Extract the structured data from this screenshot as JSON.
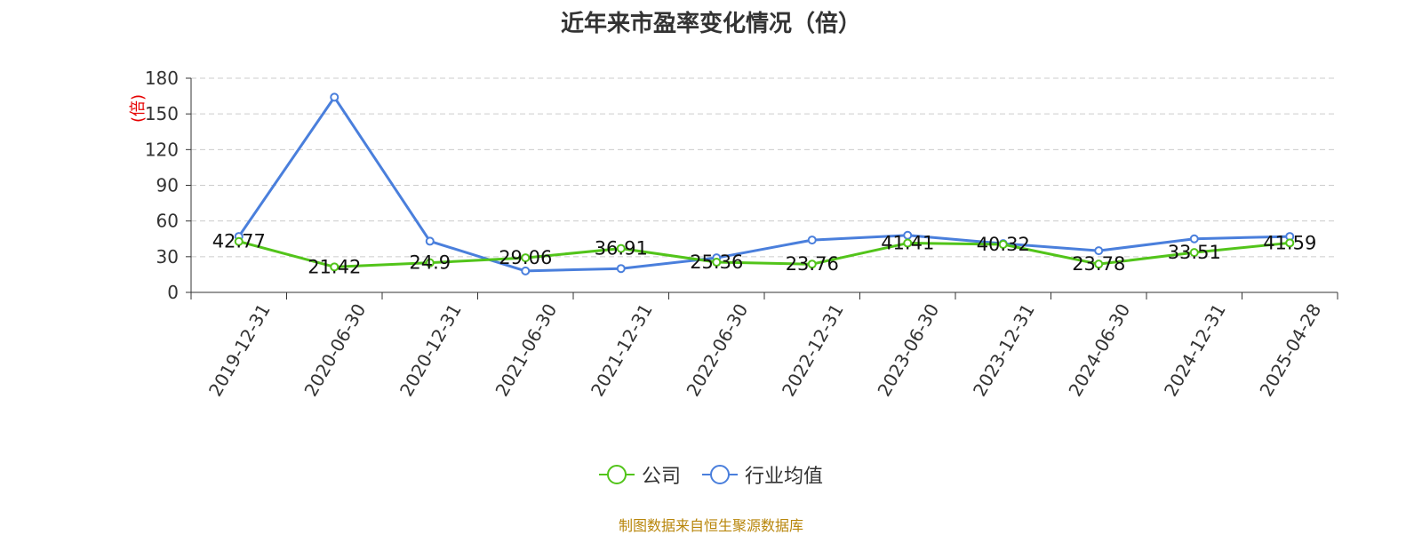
{
  "title": "近年来市盈率变化情况（倍）",
  "source": "制图数据来自恒生聚源数据库",
  "colors": {
    "company": "#52c41a",
    "industry": "#4a7fdc",
    "ylabel": "#e60000",
    "grid": "#cccccc",
    "axis": "#333333"
  },
  "chart_data": {
    "type": "line",
    "title": "近年来市盈率变化情况（倍）",
    "ylabel": "(倍)",
    "xlabel": "",
    "ylim": [
      0,
      180
    ],
    "yticks": [
      0,
      30,
      60,
      90,
      120,
      150,
      180
    ],
    "grid": true,
    "legend_position": "bottom",
    "categories": [
      "2019-12-31",
      "2020-06-30",
      "2020-12-31",
      "2021-06-30",
      "2021-12-31",
      "2022-06-30",
      "2022-12-31",
      "2023-06-30",
      "2023-12-31",
      "2024-06-30",
      "2024-12-31",
      "2025-04-28"
    ],
    "series": [
      {
        "name": "公司",
        "values": [
          42.77,
          21.42,
          24.9,
          29.06,
          36.91,
          25.36,
          23.76,
          41.41,
          40.32,
          23.78,
          33.51,
          41.59
        ],
        "labels": [
          "42.77",
          "21.42",
          "24.9",
          "29.06",
          "36.91",
          "25.36",
          "23.76",
          "41.41",
          "40.32",
          "23.78",
          "33.51",
          "41.59"
        ]
      },
      {
        "name": "行业均值",
        "values": [
          47,
          164,
          43,
          18,
          20,
          29,
          44,
          48,
          41,
          35,
          45,
          47
        ]
      }
    ]
  }
}
